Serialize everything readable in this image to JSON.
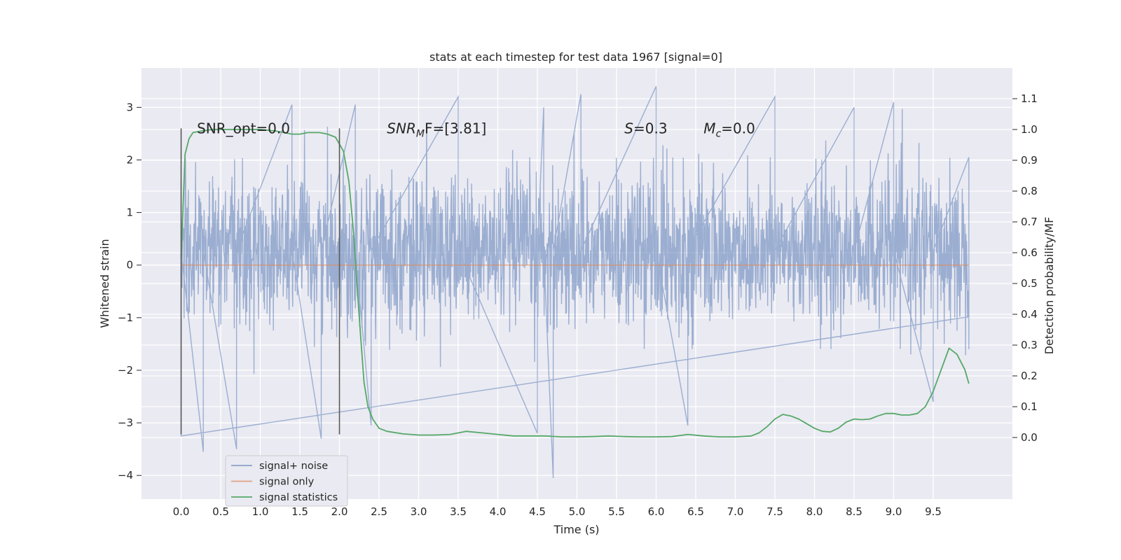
{
  "chart_data": {
    "type": "line",
    "title": "stats at each timestep for test data 1967 [signal=0]",
    "xlabel": "Time (s)",
    "ylabel": "Whitened strain",
    "y2label": "Detection probability/MF",
    "xlim": [
      -0.5,
      10.5
    ],
    "ylim": [
      -4.45,
      3.75
    ],
    "y2lim": [
      -0.2,
      1.2
    ],
    "xticks": [
      0.0,
      0.5,
      1.0,
      1.5,
      2.0,
      2.5,
      3.0,
      3.5,
      4.0,
      4.5,
      5.0,
      5.5,
      6.0,
      6.5,
      7.0,
      7.5,
      8.0,
      8.5,
      9.0,
      9.5
    ],
    "yticks": [
      3,
      2,
      1,
      0,
      -1,
      -2,
      -3,
      -4
    ],
    "ytick_labels": [
      "3",
      "2",
      "1",
      "0",
      "−1",
      "−2",
      "−3",
      "−4"
    ],
    "y2ticks": [
      1.1,
      1.0,
      0.9,
      0.8,
      0.7,
      0.6,
      0.5,
      0.4,
      0.3,
      0.2,
      0.1,
      0.0
    ],
    "y2tick_labels": [
      "1.1",
      "1.0",
      "0.9",
      "0.8",
      "0.7",
      "0.6",
      "0.5",
      "0.4",
      "0.3",
      "0.2",
      "0.1",
      "0.0"
    ],
    "grid": true,
    "legend_position": "lower-left",
    "vlines": [
      {
        "x": 0.0,
        "y": [
          -3.22,
          2.6
        ]
      },
      {
        "x": 2.0,
        "y": [
          -3.22,
          2.6
        ]
      }
    ],
    "annotations": [
      {
        "text": "SNR_opt=0.0",
        "x": 0.2,
        "y": 2.6
      },
      {
        "base": "SNR",
        "sub": "M",
        "rest": "F=[3.81]",
        "x": 2.6,
        "y": 2.6
      },
      {
        "base": "S",
        "sub": "",
        "rest": "=0.3",
        "x": 5.6,
        "y": 2.6
      },
      {
        "base": "M",
        "sub": "c",
        "rest": "=0.0",
        "x": 6.6,
        "y": 2.6
      }
    ],
    "series": [
      {
        "name": "signal+ noise",
        "color": "#4c72b0",
        "opacity": 0.5,
        "axis": "left",
        "kind": "noise",
        "x_range": [
          0.0,
          9.95
        ],
        "band": [
          -0.9,
          1.45
        ],
        "extremes": [
          {
            "x": 0.0,
            "y": -3.25
          },
          {
            "x": 0.0,
            "y": 1.6
          },
          {
            "x": 0.28,
            "y": -3.55
          },
          {
            "x": 0.7,
            "y": -3.5
          },
          {
            "x": 1.4,
            "y": 3.05
          },
          {
            "x": 1.77,
            "y": -3.3
          },
          {
            "x": 2.2,
            "y": 3.05
          },
          {
            "x": 2.4,
            "y": -3.05
          },
          {
            "x": 3.5,
            "y": 3.2
          },
          {
            "x": 4.5,
            "y": -3.2
          },
          {
            "x": 4.58,
            "y": 3.0
          },
          {
            "x": 4.7,
            "y": -4.05
          },
          {
            "x": 5.05,
            "y": 3.25
          },
          {
            "x": 6.0,
            "y": 3.4
          },
          {
            "x": 6.4,
            "y": -3.05
          },
          {
            "x": 7.5,
            "y": 3.2
          },
          {
            "x": 8.5,
            "y": 3.0
          },
          {
            "x": 9.0,
            "y": 3.1
          },
          {
            "x": 9.5,
            "y": -2.6
          },
          {
            "x": 9.95,
            "y": 2.05
          },
          {
            "x": 9.95,
            "y": -1.6
          }
        ]
      },
      {
        "name": "signal only",
        "color": "#dd8452",
        "opacity": 0.7,
        "axis": "left",
        "kind": "line",
        "x": [
          0.0,
          9.95
        ],
        "y": [
          0.0,
          0.0
        ]
      },
      {
        "name": "signal statistics",
        "color": "#55a868",
        "opacity": 1.0,
        "axis": "right",
        "kind": "line",
        "x": [
          0.0,
          0.05,
          0.1,
          0.15,
          0.25,
          0.4,
          0.6,
          0.8,
          1.0,
          1.2,
          1.4,
          1.5,
          1.6,
          1.75,
          1.85,
          1.95,
          2.05,
          2.12,
          2.18,
          2.22,
          2.27,
          2.31,
          2.36,
          2.42,
          2.5,
          2.6,
          2.8,
          3.0,
          3.2,
          3.4,
          3.6,
          3.8,
          4.0,
          4.2,
          4.4,
          4.6,
          4.8,
          5.0,
          5.2,
          5.4,
          5.6,
          5.8,
          6.0,
          6.2,
          6.4,
          6.6,
          6.8,
          7.0,
          7.2,
          7.3,
          7.4,
          7.5,
          7.6,
          7.7,
          7.8,
          7.9,
          8.0,
          8.1,
          8.2,
          8.3,
          8.4,
          8.5,
          8.6,
          8.7,
          8.8,
          8.9,
          9.0,
          9.1,
          9.2,
          9.3,
          9.4,
          9.5,
          9.6,
          9.7,
          9.8,
          9.9,
          9.95
        ],
        "y": [
          0.58,
          0.92,
          0.97,
          0.99,
          0.995,
          1.0,
          1.0,
          1.0,
          1.0,
          0.995,
          0.985,
          0.985,
          0.99,
          0.99,
          0.985,
          0.975,
          0.93,
          0.83,
          0.66,
          0.5,
          0.32,
          0.18,
          0.1,
          0.06,
          0.03,
          0.02,
          0.012,
          0.008,
          0.008,
          0.01,
          0.02,
          0.015,
          0.01,
          0.005,
          0.005,
          0.005,
          0.002,
          0.002,
          0.003,
          0.005,
          0.003,
          0.002,
          0.002,
          0.003,
          0.01,
          0.005,
          0.002,
          0.002,
          0.005,
          0.015,
          0.035,
          0.06,
          0.075,
          0.07,
          0.06,
          0.045,
          0.03,
          0.02,
          0.018,
          0.03,
          0.05,
          0.06,
          0.058,
          0.06,
          0.07,
          0.078,
          0.078,
          0.073,
          0.073,
          0.078,
          0.1,
          0.15,
          0.22,
          0.29,
          0.27,
          0.22,
          0.175
        ]
      }
    ]
  }
}
